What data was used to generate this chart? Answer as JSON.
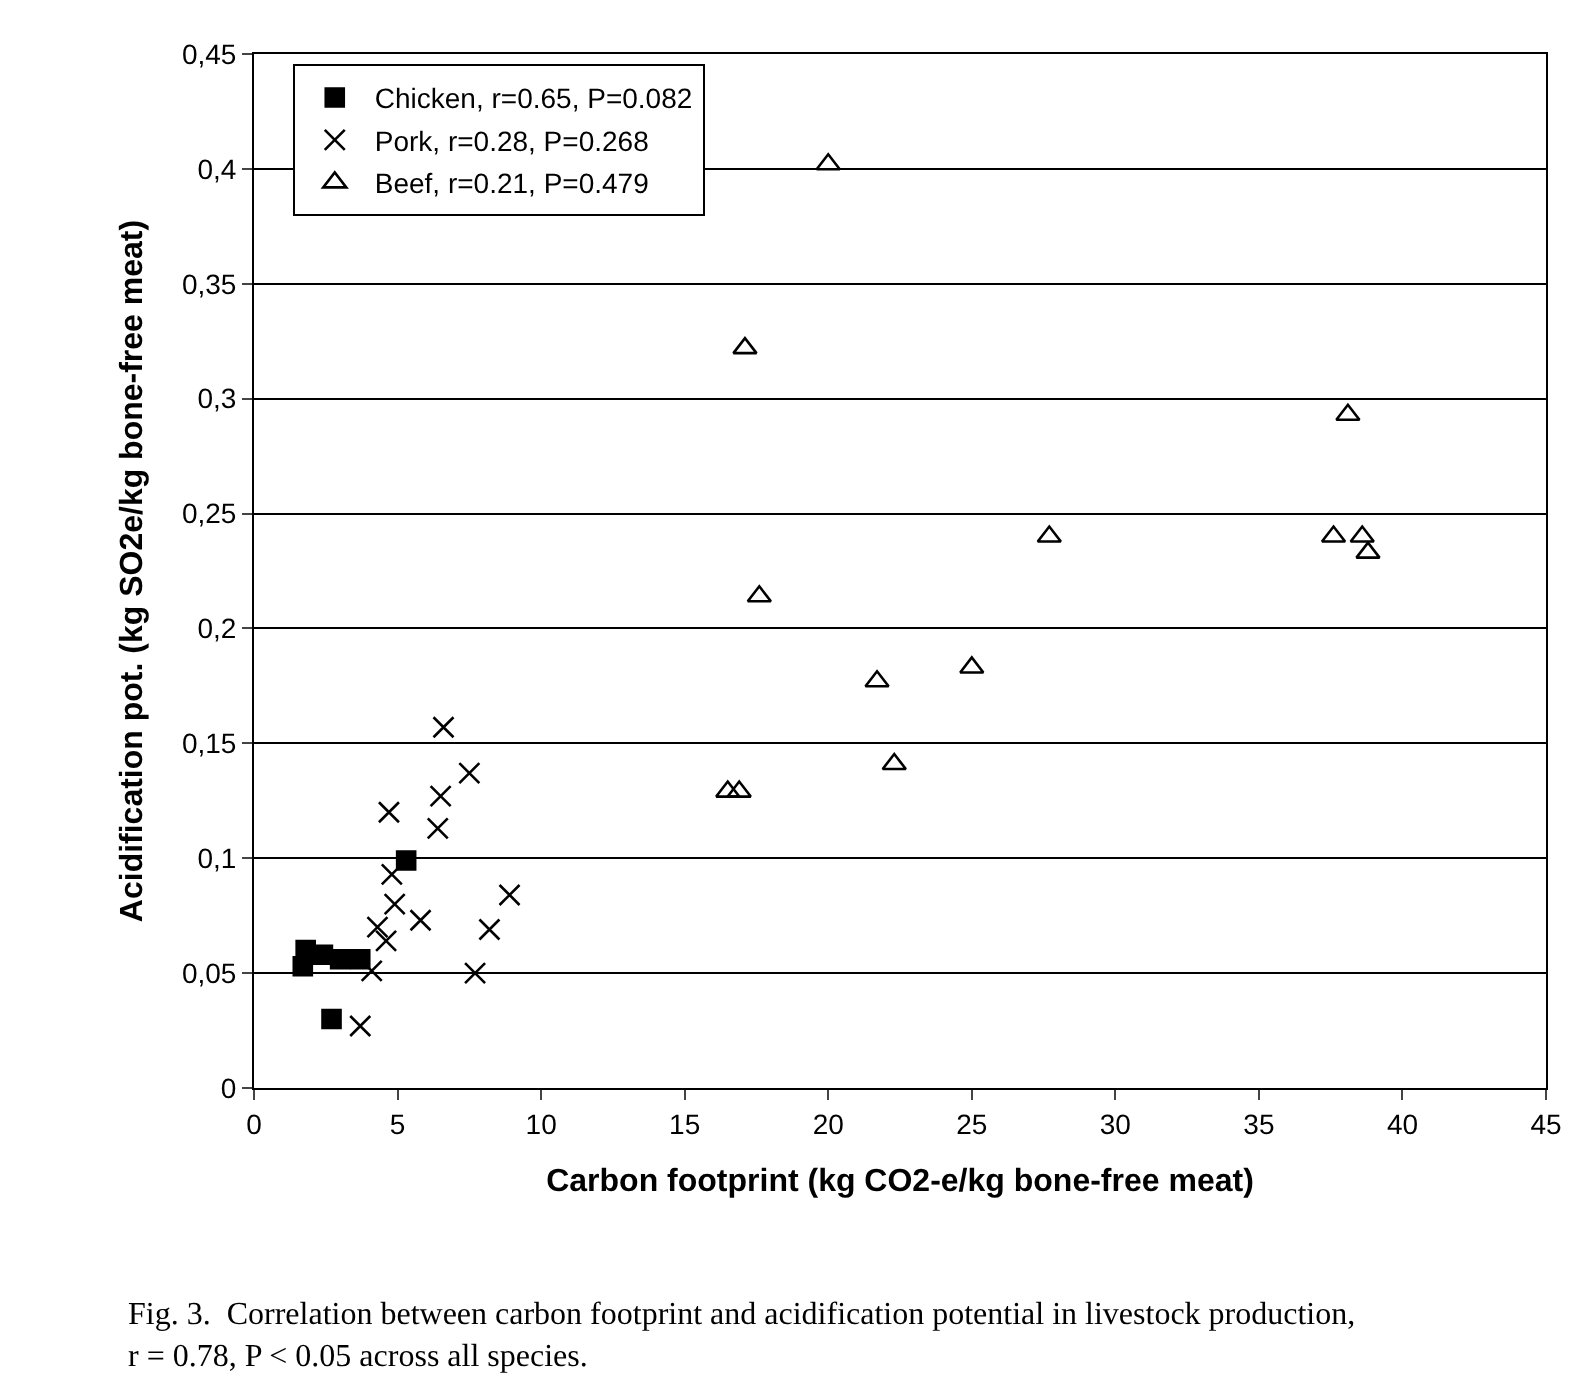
{
  "chart_data": {
    "type": "scatter",
    "xlabel": "Carbon footprint (kg CO2-e/kg bone-free meat)",
    "ylabel": "Acidification pot. (kg SO2e/kg bone-free meat)",
    "annotations": [
      "Fig. 3.  Correlation between carbon footprint and acidification potential in livestock production, r = 0.78, P < 0.05 across all species."
    ],
    "xlim": [
      0,
      45
    ],
    "xticks": [
      0,
      5,
      10,
      15,
      20,
      25,
      30,
      35,
      40,
      45
    ],
    "ylim": [
      0,
      0.45
    ],
    "yticks": [
      0,
      {
        "value": 0.05,
        "label": "0,05"
      },
      {
        "value": 0.1,
        "label": "0,1"
      },
      {
        "value": 0.15,
        "label": "0,15"
      },
      {
        "value": 0.2,
        "label": "0,2"
      },
      {
        "value": 0.25,
        "label": "0,25"
      },
      {
        "value": 0.3,
        "label": "0,3"
      },
      {
        "value": 0.35,
        "label": "0,35"
      },
      {
        "value": 0.4,
        "label": "0,4"
      },
      {
        "value": 0.45,
        "label": "0,45"
      }
    ],
    "grid": "y",
    "legend": "top left",
    "series": [
      {
        "name": "Chicken, r=0.65, P=0.082",
        "color": "#000000",
        "marker": "square",
        "x": [
          5.3,
          1.8,
          1.7,
          2.4,
          3.0,
          3.7,
          2.7
        ],
        "values": [
          0.099,
          0.06,
          0.053,
          0.058,
          0.056,
          0.056,
          0.03
        ]
      },
      {
        "name": "Pork, r=0.28, P=0.268",
        "color": "#000000",
        "marker": "cross",
        "x": [
          6.6,
          7.5,
          6.5,
          4.7,
          6.4,
          4.9,
          4.8,
          4.9,
          8.9,
          5.8,
          8.2,
          4.3,
          4.6,
          4.1,
          7.7,
          3.7
        ],
        "values": [
          0.157,
          0.137,
          0.127,
          0.12,
          0.113,
          null,
          0.093,
          0.08,
          0.084,
          0.073,
          0.069,
          0.07,
          0.064,
          0.051,
          0.05,
          0.027
        ]
      },
      {
        "name": "Beef, r=0.21, P=0.479",
        "color": "#000000",
        "marker": "triangle",
        "x": [
          20.0,
          17.1,
          38.1,
          27.7,
          37.6,
          38.6,
          38.8,
          17.6,
          21.7,
          25.0,
          22.3,
          16.5,
          16.9
        ],
        "values": [
          0.402,
          0.322,
          0.293,
          0.24,
          0.24,
          0.24,
          0.233,
          0.214,
          0.177,
          0.183,
          0.141,
          0.129,
          0.129
        ]
      }
    ]
  }
}
